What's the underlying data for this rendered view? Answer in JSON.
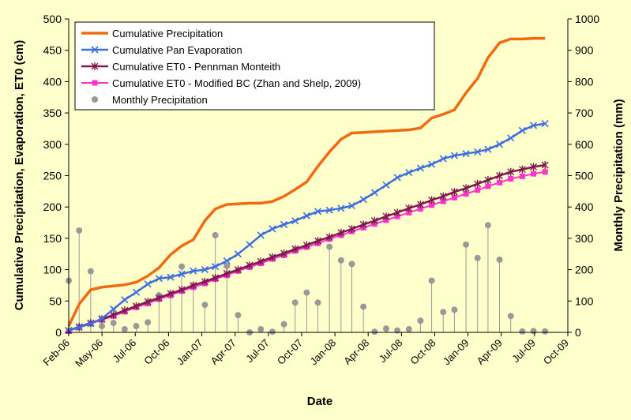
{
  "chart_data": {
    "type": "line",
    "xlabel": "Date",
    "ylabel": "Cumulative Precipitation, Evaporation, ET0 (cm)",
    "y2label": "Monthly Precipitation (mm)",
    "xlim": [
      "2006-02-01",
      "2009-10-01"
    ],
    "ylim": [
      0,
      500
    ],
    "y2lim": [
      0,
      1000
    ],
    "x_ticks": [
      "Feb-06",
      "May-06",
      "Jul-06",
      "Oct-06",
      "Jan-07",
      "Apr-07",
      "Jul-07",
      "Oct-07",
      "Jan-08",
      "Apr-08",
      "Jul-08",
      "Oct-08",
      "Jan-09",
      "Apr-09",
      "Jul-09",
      "Oct-09"
    ],
    "y_ticks": [
      0,
      50,
      100,
      150,
      200,
      250,
      300,
      350,
      400,
      450,
      500
    ],
    "y2_ticks": [
      0,
      100,
      200,
      300,
      400,
      500,
      600,
      700,
      800,
      900,
      1000
    ],
    "grid": false,
    "legend_position": "top-left",
    "series": [
      {
        "name": "Cumulative Precipitation",
        "axis": "left",
        "color": "#f26a10",
        "marker": "none",
        "points": [
          [
            "2006-02-01",
            10
          ],
          [
            "2006-03-01",
            45
          ],
          [
            "2006-04-01",
            68
          ],
          [
            "2006-05-01",
            72
          ],
          [
            "2006-06-01",
            74
          ],
          [
            "2006-07-01",
            76
          ],
          [
            "2006-08-01",
            80
          ],
          [
            "2006-09-01",
            90
          ],
          [
            "2006-10-01",
            103
          ],
          [
            "2006-11-01",
            124
          ],
          [
            "2006-12-01",
            138
          ],
          [
            "2007-01-01",
            148
          ],
          [
            "2007-02-01",
            178
          ],
          [
            "2007-03-01",
            197
          ],
          [
            "2007-04-01",
            204
          ],
          [
            "2007-05-01",
            205
          ],
          [
            "2007-06-01",
            206
          ],
          [
            "2007-07-01",
            206
          ],
          [
            "2007-08-01",
            209
          ],
          [
            "2007-09-01",
            217
          ],
          [
            "2007-10-01",
            228
          ],
          [
            "2007-11-01",
            240
          ],
          [
            "2007-12-01",
            265
          ],
          [
            "2008-01-01",
            288
          ],
          [
            "2008-02-01",
            308
          ],
          [
            "2008-03-01",
            318
          ],
          [
            "2008-04-01",
            319
          ],
          [
            "2008-05-01",
            320
          ],
          [
            "2008-06-01",
            321
          ],
          [
            "2008-07-01",
            322
          ],
          [
            "2008-08-01",
            323
          ],
          [
            "2008-09-01",
            326
          ],
          [
            "2008-10-01",
            342
          ],
          [
            "2008-11-01",
            348
          ],
          [
            "2008-12-01",
            355
          ],
          [
            "2009-01-01",
            382
          ],
          [
            "2009-02-01",
            405
          ],
          [
            "2009-03-01",
            438
          ],
          [
            "2009-04-01",
            462
          ],
          [
            "2009-05-01",
            468
          ],
          [
            "2009-06-01",
            468
          ],
          [
            "2009-07-01",
            469
          ],
          [
            "2009-08-01",
            469
          ]
        ]
      },
      {
        "name": "Cumulative Pan Evaporation",
        "axis": "left",
        "color": "#3b6fe0",
        "marker": "x",
        "points": [
          [
            "2006-02-01",
            3
          ],
          [
            "2006-03-01",
            8
          ],
          [
            "2006-04-01",
            14
          ],
          [
            "2006-05-01",
            22
          ],
          [
            "2006-06-01",
            37
          ],
          [
            "2006-07-01",
            52
          ],
          [
            "2006-08-01",
            64
          ],
          [
            "2006-09-01",
            77
          ],
          [
            "2006-10-01",
            86
          ],
          [
            "2006-11-01",
            88
          ],
          [
            "2006-12-01",
            93
          ],
          [
            "2007-01-01",
            98
          ],
          [
            "2007-02-01",
            100
          ],
          [
            "2007-03-01",
            105
          ],
          [
            "2007-04-01",
            114
          ],
          [
            "2007-05-01",
            125
          ],
          [
            "2007-06-01",
            140
          ],
          [
            "2007-07-01",
            155
          ],
          [
            "2007-08-01",
            165
          ],
          [
            "2007-09-01",
            172
          ],
          [
            "2007-10-01",
            178
          ],
          [
            "2007-11-01",
            186
          ],
          [
            "2007-12-01",
            193
          ],
          [
            "2008-01-01",
            195
          ],
          [
            "2008-02-01",
            198
          ],
          [
            "2008-03-01",
            202
          ],
          [
            "2008-04-01",
            212
          ],
          [
            "2008-05-01",
            223
          ],
          [
            "2008-06-01",
            235
          ],
          [
            "2008-07-01",
            247
          ],
          [
            "2008-08-01",
            255
          ],
          [
            "2008-09-01",
            262
          ],
          [
            "2008-10-01",
            268
          ],
          [
            "2008-11-01",
            277
          ],
          [
            "2008-12-01",
            282
          ],
          [
            "2009-01-01",
            285
          ],
          [
            "2009-02-01",
            288
          ],
          [
            "2009-03-01",
            292
          ],
          [
            "2009-04-01",
            300
          ],
          [
            "2009-05-01",
            310
          ],
          [
            "2009-06-01",
            322
          ],
          [
            "2009-07-01",
            330
          ],
          [
            "2009-08-01",
            333
          ]
        ]
      },
      {
        "name": "Cumulative ET0 - Pennman Monteith",
        "axis": "left",
        "color": "#7b1a4f",
        "marker": "star",
        "points": [
          [
            "2006-02-01",
            3
          ],
          [
            "2006-03-01",
            9
          ],
          [
            "2006-04-01",
            15
          ],
          [
            "2006-05-01",
            21
          ],
          [
            "2006-06-01",
            28
          ],
          [
            "2006-07-01",
            35
          ],
          [
            "2006-08-01",
            42
          ],
          [
            "2006-09-01",
            49
          ],
          [
            "2006-10-01",
            55
          ],
          [
            "2006-11-01",
            62
          ],
          [
            "2006-12-01",
            68
          ],
          [
            "2007-01-01",
            75
          ],
          [
            "2007-02-01",
            81
          ],
          [
            "2007-03-01",
            87
          ],
          [
            "2007-04-01",
            94
          ],
          [
            "2007-05-01",
            100
          ],
          [
            "2007-06-01",
            107
          ],
          [
            "2007-07-01",
            113
          ],
          [
            "2007-08-01",
            120
          ],
          [
            "2007-09-01",
            126
          ],
          [
            "2007-10-01",
            133
          ],
          [
            "2007-11-01",
            139
          ],
          [
            "2007-12-01",
            146
          ],
          [
            "2008-01-01",
            152
          ],
          [
            "2008-02-01",
            159
          ],
          [
            "2008-03-01",
            165
          ],
          [
            "2008-04-01",
            172
          ],
          [
            "2008-05-01",
            178
          ],
          [
            "2008-06-01",
            185
          ],
          [
            "2008-07-01",
            191
          ],
          [
            "2008-08-01",
            198
          ],
          [
            "2008-09-01",
            204
          ],
          [
            "2008-10-01",
            211
          ],
          [
            "2008-11-01",
            217
          ],
          [
            "2008-12-01",
            224
          ],
          [
            "2009-01-01",
            230
          ],
          [
            "2009-02-01",
            237
          ],
          [
            "2009-03-01",
            243
          ],
          [
            "2009-04-01",
            250
          ],
          [
            "2009-05-01",
            256
          ],
          [
            "2009-06-01",
            260
          ],
          [
            "2009-07-01",
            264
          ],
          [
            "2009-08-01",
            267
          ]
        ]
      },
      {
        "name": "Cumulative ET0 - Modified BC (Zhan and Shelp, 2009)",
        "axis": "left",
        "color": "#ff33cc",
        "marker": "square",
        "points": [
          [
            "2006-02-01",
            2
          ],
          [
            "2006-03-01",
            8
          ],
          [
            "2006-04-01",
            14
          ],
          [
            "2006-05-01",
            20
          ],
          [
            "2006-06-01",
            26
          ],
          [
            "2006-07-01",
            33
          ],
          [
            "2006-08-01",
            40
          ],
          [
            "2006-09-01",
            46
          ],
          [
            "2006-10-01",
            53
          ],
          [
            "2006-11-01",
            59
          ],
          [
            "2006-12-01",
            66
          ],
          [
            "2007-01-01",
            72
          ],
          [
            "2007-02-01",
            78
          ],
          [
            "2007-03-01",
            85
          ],
          [
            "2007-04-01",
            91
          ],
          [
            "2007-05-01",
            98
          ],
          [
            "2007-06-01",
            104
          ],
          [
            "2007-07-01",
            110
          ],
          [
            "2007-08-01",
            117
          ],
          [
            "2007-09-01",
            123
          ],
          [
            "2007-10-01",
            130
          ],
          [
            "2007-11-01",
            136
          ],
          [
            "2007-12-01",
            142
          ],
          [
            "2008-01-01",
            149
          ],
          [
            "2008-02-01",
            155
          ],
          [
            "2008-03-01",
            161
          ],
          [
            "2008-04-01",
            167
          ],
          [
            "2008-05-01",
            173
          ],
          [
            "2008-06-01",
            179
          ],
          [
            "2008-07-01",
            185
          ],
          [
            "2008-08-01",
            191
          ],
          [
            "2008-09-01",
            197
          ],
          [
            "2008-10-01",
            203
          ],
          [
            "2008-11-01",
            209
          ],
          [
            "2008-12-01",
            215
          ],
          [
            "2009-01-01",
            221
          ],
          [
            "2009-02-01",
            227
          ],
          [
            "2009-03-01",
            233
          ],
          [
            "2009-04-01",
            239
          ],
          [
            "2009-05-01",
            245
          ],
          [
            "2009-06-01",
            249
          ],
          [
            "2009-07-01",
            253
          ],
          [
            "2009-08-01",
            256
          ]
        ]
      }
    ],
    "stems": {
      "name": "Monthly Precipitation",
      "axis": "right",
      "color": "#999999",
      "marker": "circle",
      "points": [
        [
          "2006-02-01",
          165
        ],
        [
          "2006-03-01",
          325
        ],
        [
          "2006-04-01",
          195
        ],
        [
          "2006-05-01",
          20
        ],
        [
          "2006-06-01",
          30
        ],
        [
          "2006-07-01",
          10
        ],
        [
          "2006-08-01",
          20
        ],
        [
          "2006-09-01",
          32
        ],
        [
          "2006-10-01",
          118
        ],
        [
          "2006-11-01",
          118
        ],
        [
          "2006-12-01",
          210
        ],
        [
          "2007-01-01",
          148
        ],
        [
          "2007-02-01",
          88
        ],
        [
          "2007-03-01",
          310
        ],
        [
          "2007-04-01",
          212
        ],
        [
          "2007-05-01",
          55
        ],
        [
          "2007-06-01",
          0
        ],
        [
          "2007-07-01",
          10
        ],
        [
          "2007-08-01",
          2
        ],
        [
          "2007-09-01",
          26
        ],
        [
          "2007-10-01",
          95
        ],
        [
          "2007-11-01",
          127
        ],
        [
          "2007-12-01",
          95
        ],
        [
          "2008-01-01",
          273
        ],
        [
          "2008-02-01",
          230
        ],
        [
          "2008-03-01",
          218
        ],
        [
          "2008-04-01",
          82
        ],
        [
          "2008-05-01",
          2
        ],
        [
          "2008-06-01",
          12
        ],
        [
          "2008-07-01",
          6
        ],
        [
          "2008-08-01",
          10
        ],
        [
          "2008-09-01",
          37
        ],
        [
          "2008-10-01",
          165
        ],
        [
          "2008-11-01",
          65
        ],
        [
          "2008-12-01",
          72
        ],
        [
          "2009-01-01",
          280
        ],
        [
          "2009-02-01",
          237
        ],
        [
          "2009-03-01",
          342
        ],
        [
          "2009-04-01",
          232
        ],
        [
          "2009-05-01",
          52
        ],
        [
          "2009-06-01",
          3
        ],
        [
          "2009-07-01",
          4
        ],
        [
          "2009-08-01",
          3
        ]
      ]
    }
  }
}
